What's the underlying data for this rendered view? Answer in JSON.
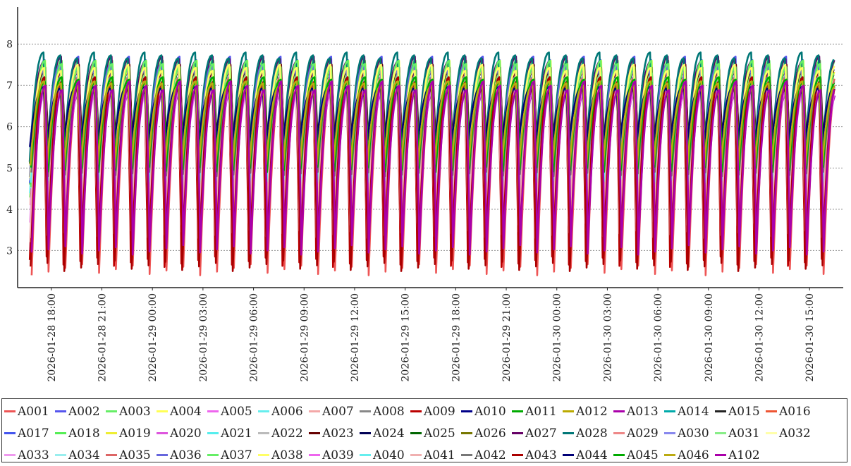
{
  "chart_data": {
    "type": "line",
    "title": "",
    "xlabel": "",
    "ylabel": "",
    "ylim": [
      2.1,
      8.9
    ],
    "yticks": [
      3,
      4,
      5,
      6,
      7,
      8
    ],
    "x_range": [
      "2026-01-28 16:00",
      "2026-01-30 17:00"
    ],
    "xticks": [
      "2026-01-28 18:00",
      "2026-01-28 21:00",
      "2026-01-29 00:00",
      "2026-01-29 03:00",
      "2026-01-29 06:00",
      "2026-01-29 09:00",
      "2026-01-29 12:00",
      "2026-01-29 15:00",
      "2026-01-29 18:00",
      "2026-01-29 21:00",
      "2026-01-30 00:00",
      "2026-01-30 03:00",
      "2026-01-30 06:00",
      "2026-01-30 09:00",
      "2026-01-30 12:00",
      "2026-01-30 15:00"
    ],
    "grid": "horizontal dotted",
    "legend_position": "bottom",
    "cycle_period_minutes": 60,
    "series": [
      {
        "name": "A001",
        "color": "#ee5555",
        "min": 2.4,
        "max": 7.3
      },
      {
        "name": "A002",
        "color": "#5555ee",
        "min": 4.3,
        "max": 7.7
      },
      {
        "name": "A003",
        "color": "#66ee66",
        "min": 4.2,
        "max": 7.7
      },
      {
        "name": "A004",
        "color": "#ffff55",
        "min": 4.3,
        "max": 7.6
      },
      {
        "name": "A005",
        "color": "#ee66ee",
        "min": 3.5,
        "max": 7.0
      },
      {
        "name": "A006",
        "color": "#66eeee",
        "min": 4.3,
        "max": 7.2
      },
      {
        "name": "A007",
        "color": "#f4a8a8",
        "min": 3.2,
        "max": 7.2
      },
      {
        "name": "A008",
        "color": "#888888",
        "min": 4.5,
        "max": 7.0
      },
      {
        "name": "A009",
        "color": "#bb0000",
        "min": 2.6,
        "max": 7.3
      },
      {
        "name": "A010",
        "color": "#000088",
        "min": 5.3,
        "max": 6.9
      },
      {
        "name": "A011",
        "color": "#00aa00",
        "min": 4.6,
        "max": 7.1
      },
      {
        "name": "A012",
        "color": "#bbaa00",
        "min": 4.8,
        "max": 7.1
      },
      {
        "name": "A013",
        "color": "#aa00aa",
        "min": 2.9,
        "max": 7.0
      },
      {
        "name": "A014",
        "color": "#00aaaa",
        "min": 4.8,
        "max": 7.2
      },
      {
        "name": "A015",
        "color": "#222222",
        "min": 5.4,
        "max": 7.4
      },
      {
        "name": "A016",
        "color": "#ee5533",
        "min": 4.0,
        "max": 7.2
      },
      {
        "name": "A017",
        "color": "#4455ee",
        "min": 4.6,
        "max": 7.5
      },
      {
        "name": "A018",
        "color": "#55ee55",
        "min": 4.4,
        "max": 7.6
      },
      {
        "name": "A019",
        "color": "#eeee33",
        "min": 4.6,
        "max": 7.5
      },
      {
        "name": "A020",
        "color": "#dd55dd",
        "min": 3.6,
        "max": 7.0
      },
      {
        "name": "A021",
        "color": "#55eeee",
        "min": 4.5,
        "max": 7.1
      },
      {
        "name": "A022",
        "color": "#bbbbbb",
        "min": 4.6,
        "max": 7.0
      },
      {
        "name": "A023",
        "color": "#660000",
        "min": 5.0,
        "max": 7.5
      },
      {
        "name": "A024",
        "color": "#000055",
        "min": 5.4,
        "max": 7.0
      },
      {
        "name": "A025",
        "color": "#006600",
        "min": 5.0,
        "max": 7.2
      },
      {
        "name": "A026",
        "color": "#777700",
        "min": 5.1,
        "max": 7.1
      },
      {
        "name": "A027",
        "color": "#660066",
        "min": 5.2,
        "max": 7.7
      },
      {
        "name": "A028",
        "color": "#007777",
        "min": 5.0,
        "max": 7.8
      },
      {
        "name": "A029",
        "color": "#ee8888",
        "min": 4.0,
        "max": 7.1
      },
      {
        "name": "A030",
        "color": "#8888ee",
        "min": 4.7,
        "max": 7.2
      },
      {
        "name": "A031",
        "color": "#88ee88",
        "min": 4.3,
        "max": 7.3
      },
      {
        "name": "A032",
        "color": "#ffffaa",
        "min": 4.8,
        "max": 7.2
      },
      {
        "name": "A033",
        "color": "#ee99ee",
        "min": 3.6,
        "max": 6.9
      },
      {
        "name": "A034",
        "color": "#99eeee",
        "min": 4.5,
        "max": 7.0
      },
      {
        "name": "A035",
        "color": "#dd6666",
        "min": 3.0,
        "max": 7.2
      },
      {
        "name": "A036",
        "color": "#6666dd",
        "min": 4.7,
        "max": 7.5
      },
      {
        "name": "A037",
        "color": "#66ee66",
        "min": 4.5,
        "max": 7.6
      },
      {
        "name": "A038",
        "color": "#ffff66",
        "min": 4.6,
        "max": 7.5
      },
      {
        "name": "A039",
        "color": "#ee66ee",
        "min": 3.4,
        "max": 7.0
      },
      {
        "name": "A040",
        "color": "#66eeee",
        "min": 4.6,
        "max": 7.1
      },
      {
        "name": "A041",
        "color": "#f0b0b0",
        "min": 3.3,
        "max": 7.0
      },
      {
        "name": "A042",
        "color": "#777777",
        "min": 4.8,
        "max": 7.0
      },
      {
        "name": "A043",
        "color": "#aa0000",
        "min": 2.5,
        "max": 7.2
      },
      {
        "name": "A044",
        "color": "#000077",
        "min": 5.5,
        "max": 7.0
      },
      {
        "name": "A045",
        "color": "#00aa00",
        "min": 4.9,
        "max": 7.2
      },
      {
        "name": "A046",
        "color": "#bbaa11",
        "min": 5.0,
        "max": 7.1
      },
      {
        "name": "A102",
        "color": "#aa00aa",
        "min": 2.9,
        "max": 7.1
      }
    ]
  }
}
